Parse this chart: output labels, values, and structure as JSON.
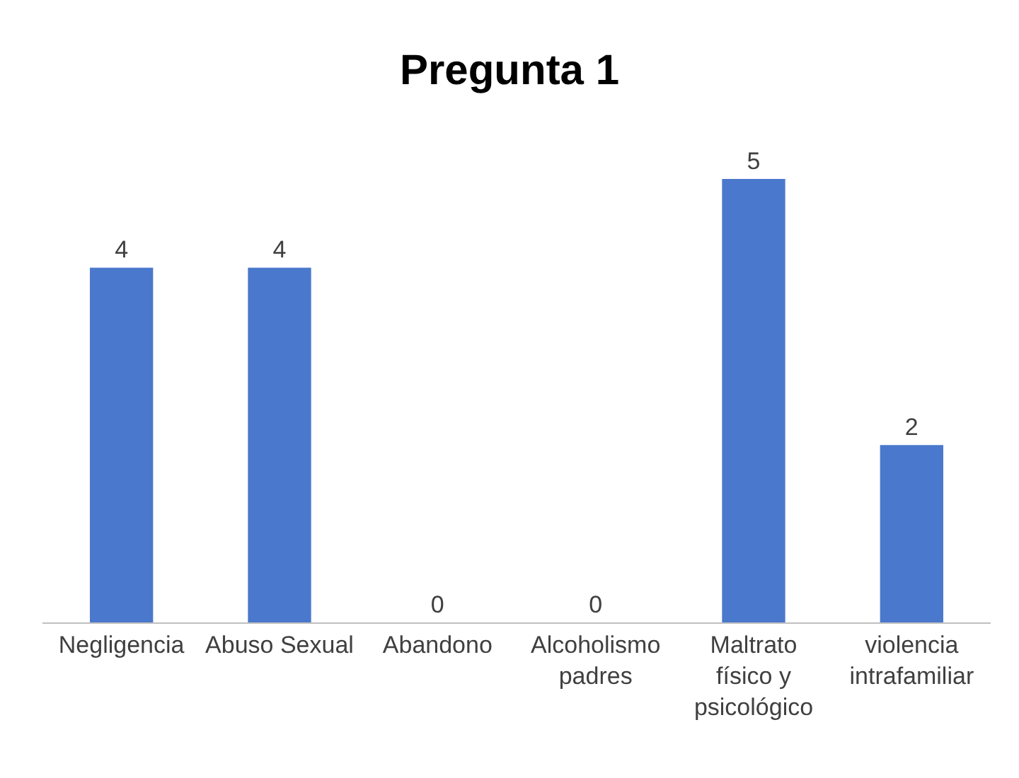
{
  "chart_data": {
    "type": "bar",
    "title": "Pregunta 1",
    "categories": [
      "Negligencia",
      "Abuso Sexual",
      "Abandono",
      "Alcoholismo padres",
      "Maltrato físico y psicológico",
      "violencia intrafamiliar"
    ],
    "values": [
      4,
      4,
      0,
      0,
      5,
      2
    ],
    "color": "#4a78cc",
    "data_labels": true
  }
}
